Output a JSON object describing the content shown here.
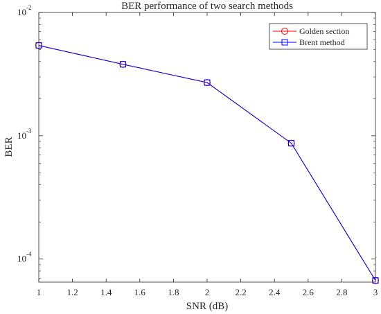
{
  "chart_data": {
    "type": "line",
    "title": "BER performance of two search methods",
    "xlabel": "SNR (dB)",
    "ylabel": "BER",
    "xlim": [
      1,
      3
    ],
    "ylim": [
      6.5e-05,
      0.01
    ],
    "yscale": "log",
    "x": [
      1,
      1.5,
      2,
      2.5,
      3
    ],
    "x_ticks": [
      "1",
      "1.2",
      "1.4",
      "1.6",
      "1.8",
      "2",
      "2.2",
      "2.4",
      "2.6",
      "2.8",
      "3"
    ],
    "y_ticks": [
      {
        "base": "10",
        "exp": "-2",
        "value": 0.01
      },
      {
        "base": "10",
        "exp": "-3",
        "value": 0.001
      },
      {
        "base": "10",
        "exp": "-4",
        "value": 0.0001
      }
    ],
    "grid": false,
    "legend_position": "top-right",
    "series": [
      {
        "name": "Golden section",
        "color": "#ff0000",
        "marker": "circle",
        "values": [
          0.0054,
          0.0038,
          0.0027,
          0.00087,
          6.7e-05
        ]
      },
      {
        "name": "Brent method",
        "color": "#0000ff",
        "marker": "square",
        "values": [
          0.0054,
          0.0038,
          0.0027,
          0.00087,
          6.7e-05
        ]
      }
    ]
  }
}
